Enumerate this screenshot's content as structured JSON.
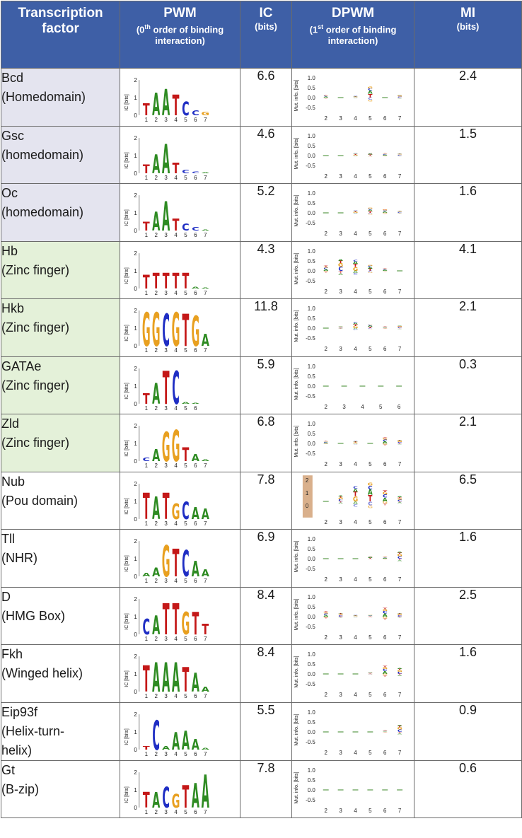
{
  "header": {
    "tf_label": "Transcription factor",
    "pwm_label": "PWM",
    "pwm_sub_pre": "(0",
    "pwm_sub_sup": "th",
    "pwm_sub_post": " order of binding interaction)",
    "ic_label": "IC",
    "ic_sub": "(bits)",
    "dpwm_label": "DPWM",
    "dpwm_sub_pre": "(1",
    "dpwm_sub_sup": "st",
    "dpwm_sub_post": " order of binding interaction)",
    "mi_label": "MI",
    "mi_sub": "(bits)"
  },
  "pwm_axis": {
    "label": "IC [bits]",
    "ticks": [
      "2",
      "1",
      "0"
    ]
  },
  "dpwm_axis": {
    "label": "Mut. info. [bits]",
    "ticks": [
      "1.0",
      "0.5",
      "0.0",
      "-0.5"
    ]
  },
  "colors": {
    "A": "#2e8b22",
    "C": "#1f2ec4",
    "G": "#e8a020",
    "T": "#c41818"
  },
  "rows": [
    {
      "name": "Bcd",
      "family": "(Homedomain)",
      "group": "homeo",
      "ic": "6.6",
      "mi": "2.4",
      "pwm": {
        "letters": [
          "T",
          "A",
          "A",
          "T",
          "C",
          "C",
          "G"
        ],
        "heights": [
          0.7,
          1.3,
          1.5,
          1.2,
          0.8,
          0.3,
          0.2
        ],
        "positions": [
          "1",
          "2",
          "3",
          "4",
          "5",
          "6",
          "7"
        ]
      },
      "dpwm": {
        "positions": [
          "2",
          "3",
          "4",
          "5",
          "6",
          "7"
        ],
        "mi": [
          0.15,
          0.02,
          0.08,
          0.55,
          0.05,
          0.15
        ]
      }
    },
    {
      "name": "Gsc",
      "family": "(homedomain)",
      "group": "homeo",
      "ic": "4.6",
      "mi": "1.5",
      "pwm": {
        "letters": [
          "T",
          "A",
          "A",
          "T",
          "C",
          "C",
          "A"
        ],
        "heights": [
          0.5,
          1.1,
          1.7,
          0.6,
          0.2,
          0.1,
          0.05
        ],
        "positions": [
          "1",
          "2",
          "3",
          "4",
          "5",
          "6",
          "7"
        ]
      },
      "dpwm": {
        "positions": [
          "2",
          "3",
          "4",
          "5",
          "6",
          "7"
        ],
        "mi": [
          0.03,
          0.02,
          0.12,
          0.15,
          0.12,
          0.1
        ]
      }
    },
    {
      "name": "Oc",
      "family": "(homedomain)",
      "group": "homeo",
      "ic": "5.2",
      "mi": "1.6",
      "pwm": {
        "letters": [
          "T",
          "A",
          "A",
          "T",
          "C",
          "C",
          "A"
        ],
        "heights": [
          0.5,
          1.1,
          1.7,
          0.7,
          0.4,
          0.2,
          0.05
        ],
        "positions": [
          "1",
          "2",
          "3",
          "4",
          "5",
          "6",
          "7"
        ]
      },
      "dpwm": {
        "positions": [
          "2",
          "3",
          "4",
          "5",
          "6",
          "7"
        ],
        "mi": [
          0.03,
          0.02,
          0.12,
          0.25,
          0.18,
          0.1
        ]
      }
    },
    {
      "name": "Hb",
      "family": "(Zinc finger)",
      "group": "zinc",
      "ic": "4.3",
      "mi": "4.1",
      "pwm": {
        "letters": [
          "T",
          "T",
          "T",
          "T",
          "T",
          "A",
          "A"
        ],
        "heights": [
          0.8,
          0.9,
          0.9,
          0.9,
          0.9,
          0.1,
          0.05
        ],
        "positions": [
          "1",
          "2",
          "3",
          "4",
          "5",
          "6",
          "7"
        ]
      },
      "dpwm": {
        "positions": [
          "2",
          "3",
          "4",
          "5",
          "6",
          "7"
        ],
        "mi": [
          0.25,
          0.6,
          0.55,
          0.3,
          0.15,
          0.05
        ]
      }
    },
    {
      "name": "Hkb",
      "family": "(Zinc finger)",
      "group": "zinc",
      "ic": "11.8",
      "mi": "2.1",
      "pwm": {
        "letters": [
          "G",
          "G",
          "C",
          "G",
          "T",
          "G",
          "A"
        ],
        "heights": [
          1.95,
          1.95,
          1.85,
          1.95,
          1.85,
          1.75,
          0.7
        ],
        "positions": [
          "1",
          "2",
          "3",
          "4",
          "5",
          "6",
          "7"
        ]
      },
      "dpwm": {
        "positions": [
          "2",
          "3",
          "4",
          "5",
          "6",
          "7"
        ],
        "mi": [
          0.05,
          0.08,
          0.3,
          0.2,
          0.08,
          0.15
        ]
      }
    },
    {
      "name": "GATAe",
      "family": "(Zinc finger)",
      "group": "zinc",
      "ic": "5.9",
      "mi": "0.3",
      "pwm": {
        "letters": [
          "T",
          "A",
          "T",
          "C",
          "A",
          "A"
        ],
        "heights": [
          0.6,
          1.2,
          1.9,
          1.9,
          0.1,
          0.05
        ],
        "positions": [
          "1",
          "2",
          "3",
          "4",
          "5",
          "6"
        ]
      },
      "dpwm": {
        "positions": [
          "2",
          "3",
          "4",
          "5",
          "6"
        ],
        "mi": [
          0.04,
          0.02,
          0.02,
          0.02,
          0.05
        ]
      }
    },
    {
      "name": "Zld",
      "family": "(Zinc finger)",
      "group": "zinc",
      "ic": "6.8",
      "mi": "2.1",
      "pwm": {
        "letters": [
          "C",
          "A",
          "G",
          "G",
          "T",
          "A",
          "A"
        ],
        "heights": [
          0.2,
          0.7,
          1.7,
          1.8,
          0.8,
          0.4,
          0.1
        ],
        "positions": [
          "1",
          "2",
          "3",
          "4",
          "5",
          "6",
          "7"
        ]
      },
      "dpwm": {
        "positions": [
          "2",
          "3",
          "4",
          "5",
          "6",
          "7"
        ],
        "mi": [
          0.12,
          0.05,
          0.15,
          0.05,
          0.3,
          0.2
        ]
      }
    },
    {
      "name": "Nub",
      "family": "(Pou domain)",
      "group": "none",
      "ic": "7.8",
      "mi": "6.5",
      "pwm": {
        "letters": [
          "T",
          "A",
          "T",
          "G",
          "C",
          "A",
          "A"
        ],
        "heights": [
          1.5,
          1.3,
          1.5,
          0.9,
          1.0,
          0.7,
          0.6
        ],
        "positions": [
          "1",
          "2",
          "3",
          "4",
          "5",
          "6",
          "7"
        ]
      },
      "dpwm": {
        "positions": [
          "2",
          "3",
          "4",
          "5",
          "6",
          "7"
        ],
        "mi": [
          0.02,
          0.3,
          0.75,
          0.95,
          0.55,
          0.25
        ],
        "ticks": [
          "2",
          "1",
          "0"
        ],
        "shaded": true
      }
    },
    {
      "name": "Tll",
      "family": "(NHR)",
      "group": "none",
      "ic": "6.9",
      "mi": "1.6",
      "pwm": {
        "letters": [
          "A",
          "A",
          "G",
          "T",
          "C",
          "A",
          "A"
        ],
        "heights": [
          0.2,
          0.5,
          1.8,
          1.6,
          1.5,
          0.9,
          0.4
        ],
        "positions": [
          "1",
          "2",
          "3",
          "4",
          "5",
          "6",
          "7"
        ]
      },
      "dpwm": {
        "positions": [
          "2",
          "3",
          "4",
          "5",
          "6",
          "7"
        ],
        "mi": [
          0.05,
          0.05,
          0.05,
          0.12,
          0.1,
          0.35
        ]
      }
    },
    {
      "name": "D",
      "family": "(HMG Box)",
      "group": "none",
      "ic": "8.4",
      "mi": "2.5",
      "pwm": {
        "letters": [
          "C",
          "A",
          "T",
          "T",
          "G",
          "T",
          "T"
        ],
        "heights": [
          0.9,
          1.1,
          1.8,
          1.8,
          1.3,
          1.3,
          0.6
        ],
        "positions": [
          "1",
          "2",
          "3",
          "4",
          "5",
          "6",
          "7"
        ]
      },
      "dpwm": {
        "positions": [
          "2",
          "3",
          "4",
          "5",
          "6",
          "7"
        ],
        "mi": [
          0.25,
          0.18,
          0.08,
          0.08,
          0.45,
          0.2
        ]
      }
    },
    {
      "name": "Fkh",
      "family": "(Winged helix)",
      "group": "none",
      "ic": "8.4",
      "mi": "1.6",
      "pwm": {
        "letters": [
          "T",
          "A",
          "A",
          "A",
          "T",
          "A",
          "A"
        ],
        "heights": [
          1.5,
          1.7,
          1.7,
          1.7,
          1.4,
          1.1,
          0.3
        ],
        "positions": [
          "1",
          "2",
          "3",
          "4",
          "5",
          "6",
          "7"
        ]
      },
      "dpwm": {
        "positions": [
          "2",
          "3",
          "4",
          "5",
          "6",
          "7"
        ],
        "mi": [
          0.05,
          0.05,
          0.02,
          0.08,
          0.4,
          0.3
        ]
      }
    },
    {
      "name": "Eip93f",
      "family": "(Helix-turn-helix)",
      "family_lines": [
        "(Helix-turn-",
        "helix)"
      ],
      "group": "none",
      "ic": "5.5",
      "mi": "0.9",
      "pwm": {
        "letters": [
          "T",
          "C",
          "A",
          "A",
          "A",
          "A",
          "A"
        ],
        "heights": [
          0.2,
          1.7,
          0.2,
          1.0,
          1.1,
          0.6,
          0.1
        ],
        "positions": [
          "1",
          "2",
          "3",
          "4",
          "5",
          "6",
          "7"
        ]
      },
      "dpwm": {
        "positions": [
          "2",
          "3",
          "4",
          "5",
          "6",
          "7"
        ],
        "mi": [
          0.02,
          0.02,
          0.02,
          0.02,
          0.08,
          0.35
        ]
      }
    },
    {
      "name": "Gt",
      "family": "(B-zip)",
      "group": "none",
      "ic": "7.8",
      "mi": "0.6",
      "pwm": {
        "letters": [
          "T",
          "A",
          "C",
          "G",
          "T",
          "A",
          "A"
        ],
        "heights": [
          0.9,
          0.9,
          1.2,
          0.8,
          1.3,
          1.4,
          1.9
        ],
        "positions": [
          "1",
          "2",
          "3",
          "4",
          "5",
          "6",
          "7"
        ]
      },
      "dpwm": {
        "positions": [
          "2",
          "3",
          "4",
          "5",
          "6",
          "7"
        ],
        "mi": [
          0.05,
          0.04,
          0.04,
          0.03,
          0.04,
          0.05
        ]
      }
    }
  ]
}
